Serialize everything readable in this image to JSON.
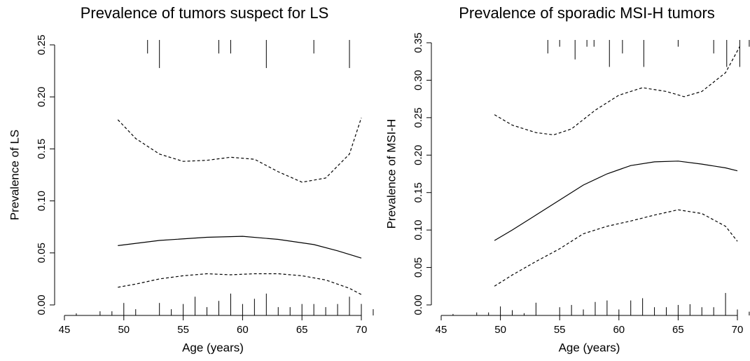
{
  "chart_data": [
    {
      "type": "line",
      "title": "Prevalence of tumors suspect for LS",
      "xlabel": "Age (years)",
      "ylabel": "Prevalence of LS",
      "xlim": [
        45,
        70
      ],
      "xticks": [
        45,
        50,
        55,
        60,
        65,
        70
      ],
      "ylim": [
        0,
        0.25
      ],
      "yticks": [
        {
          "value": 0,
          "label": "0.00"
        },
        {
          "value": 0.05,
          "label": "0.05"
        },
        {
          "value": 0.1,
          "label": "0.10"
        },
        {
          "value": 0.15,
          "label": "0.15"
        },
        {
          "value": 0.2,
          "label": "0.20"
        },
        {
          "value": 0.25,
          "label": "0.25"
        }
      ],
      "series": [
        {
          "color": "#000000",
          "dash": false,
          "x": [
            49.5,
            53,
            57,
            60,
            63,
            66,
            68,
            70
          ],
          "values": [
            0.057,
            0.062,
            0.065,
            0.066,
            0.063,
            0.058,
            0.052,
            0.045
          ]
        },
        {
          "color": "#000000",
          "dash": true,
          "x": [
            49.5,
            51,
            53,
            55,
            57,
            59,
            61,
            63,
            65,
            67,
            69,
            70
          ],
          "values": [
            0.178,
            0.16,
            0.145,
            0.138,
            0.139,
            0.142,
            0.14,
            0.128,
            0.118,
            0.122,
            0.145,
            0.18
          ]
        },
        {
          "color": "#000000",
          "dash": true,
          "x": [
            49.5,
            51,
            53,
            55,
            57,
            59,
            61,
            63,
            65,
            67,
            69,
            70
          ],
          "values": [
            0.017,
            0.02,
            0.025,
            0.028,
            0.03,
            0.029,
            0.03,
            0.03,
            0.028,
            0.024,
            0.016,
            0.01
          ]
        }
      ],
      "rug_bottom": {
        "x": [
          46,
          48,
          49,
          50,
          51,
          53,
          54,
          55,
          56,
          57,
          58,
          59,
          60,
          61,
          62,
          63,
          64,
          65,
          66,
          67,
          68,
          69,
          70,
          71
        ],
        "values": [
          0.002,
          0.004,
          0.004,
          0.012,
          0.006,
          0.012,
          0.006,
          0.011,
          0.018,
          0.008,
          0.014,
          0.021,
          0.011,
          0.016,
          0.021,
          0.008,
          0.008,
          0.011,
          0.011,
          0.008,
          0.011,
          0.018,
          0.011,
          0.006
        ]
      },
      "rug_top": {
        "x": [
          52,
          53,
          58,
          59,
          62,
          66,
          69
        ],
        "values": [
          0.013,
          0.027,
          0.013,
          0.013,
          0.027,
          0.013,
          0.027
        ]
      }
    },
    {
      "type": "line",
      "title": "Prevalence of sporadic MSI-H tumors",
      "xlabel": "Age (years)",
      "ylabel": "Prevalence of MSI-H",
      "xlim": [
        45,
        70
      ],
      "xticks": [
        45,
        50,
        55,
        60,
        65,
        70
      ],
      "ylim": [
        0,
        0.35
      ],
      "yticks": [
        {
          "value": 0,
          "label": "0.00"
        },
        {
          "value": 0.05,
          "label": "0.05"
        },
        {
          "value": 0.1,
          "label": "0.10"
        },
        {
          "value": 0.15,
          "label": "0.15"
        },
        {
          "value": 0.2,
          "label": "0.20"
        },
        {
          "value": 0.25,
          "label": "0.25"
        },
        {
          "value": 0.3,
          "label": "0.30"
        },
        {
          "value": 0.35,
          "label": "0.35"
        }
      ],
      "series": [
        {
          "color": "#000000",
          "dash": false,
          "x": [
            49.5,
            51,
            53,
            55,
            57,
            59,
            61,
            63,
            65,
            67,
            69,
            70
          ],
          "values": [
            0.086,
            0.1,
            0.12,
            0.14,
            0.16,
            0.175,
            0.186,
            0.191,
            0.192,
            0.188,
            0.183,
            0.179
          ]
        },
        {
          "color": "#000000",
          "dash": true,
          "x": [
            49.5,
            51,
            53,
            54.5,
            56,
            58,
            60,
            62,
            64,
            65.5,
            67,
            69,
            70.2
          ],
          "values": [
            0.254,
            0.24,
            0.23,
            0.227,
            0.235,
            0.26,
            0.28,
            0.29,
            0.285,
            0.278,
            0.285,
            0.31,
            0.345
          ]
        },
        {
          "color": "#000000",
          "dash": true,
          "x": [
            49.5,
            51,
            53,
            55,
            57,
            59,
            61,
            63,
            65,
            67,
            69,
            70
          ],
          "values": [
            0.025,
            0.04,
            0.058,
            0.075,
            0.095,
            0.105,
            0.112,
            0.12,
            0.127,
            0.122,
            0.105,
            0.085
          ]
        }
      ],
      "rug_bottom": {
        "x": [
          46,
          48,
          49,
          50,
          51,
          52,
          53,
          55,
          56,
          57,
          58,
          59,
          60,
          61,
          62,
          63,
          64,
          65,
          66,
          67,
          68,
          69,
          70,
          71
        ],
        "values": [
          0.002,
          0.004,
          0.004,
          0.012,
          0.007,
          0.003,
          0.017,
          0.011,
          0.014,
          0.008,
          0.018,
          0.02,
          0.008,
          0.02,
          0.023,
          0.011,
          0.011,
          0.014,
          0.015,
          0.011,
          0.011,
          0.03,
          0.008,
          0.005
        ]
      },
      "rug_top": {
        "x": [
          54,
          55,
          56.3,
          57.3,
          57.9,
          59.2,
          60.3,
          62.1,
          65,
          68,
          69.1,
          70.2,
          71
        ],
        "values": [
          0.018,
          0.009,
          0.026,
          0.009,
          0.009,
          0.036,
          0.018,
          0.036,
          0.009,
          0.018,
          0.036,
          0.036,
          0.009
        ]
      }
    }
  ]
}
